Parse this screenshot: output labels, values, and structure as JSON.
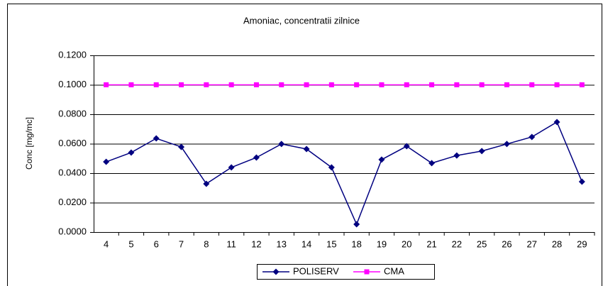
{
  "chart_data": {
    "type": "line",
    "title": "Amoniac, concentratii zilnice",
    "y_label": "Conc [mg/mc]",
    "categories": [
      "4",
      "5",
      "6",
      "7",
      "8",
      "11",
      "12",
      "13",
      "14",
      "15",
      "18",
      "19",
      "20",
      "21",
      "22",
      "25",
      "26",
      "27",
      "28",
      "29"
    ],
    "series": [
      {
        "name": "POLISERV",
        "color": "#000080",
        "marker": "diamond",
        "values": [
          0.0477,
          0.054,
          0.0636,
          0.0578,
          0.0328,
          0.0439,
          0.0506,
          0.0598,
          0.0564,
          0.0439,
          0.0053,
          0.0492,
          0.0583,
          0.0468,
          0.052,
          0.055,
          0.0598,
          0.0646,
          0.0747,
          0.0342
        ]
      },
      {
        "name": "CMA",
        "color": "#ff00ff",
        "marker": "square",
        "values": [
          0.1,
          0.1,
          0.1,
          0.1,
          0.1,
          0.1,
          0.1,
          0.1,
          0.1,
          0.1,
          0.1,
          0.1,
          0.1,
          0.1,
          0.1,
          0.1,
          0.1,
          0.1,
          0.1,
          0.1
        ]
      }
    ],
    "ylim": [
      0,
      0.12
    ],
    "yticks": [
      {
        "value": 0,
        "label": "0.0000"
      },
      {
        "value": 0.02,
        "label": "0.0200"
      },
      {
        "value": 0.04,
        "label": "0.0400"
      },
      {
        "value": 0.06,
        "label": "0.0600"
      },
      {
        "value": 0.08,
        "label": "0.0800"
      },
      {
        "value": 0.1,
        "label": "0.1000"
      },
      {
        "value": 0.12,
        "label": "0.1200"
      }
    ],
    "grid": true,
    "legend": "bottom"
  }
}
